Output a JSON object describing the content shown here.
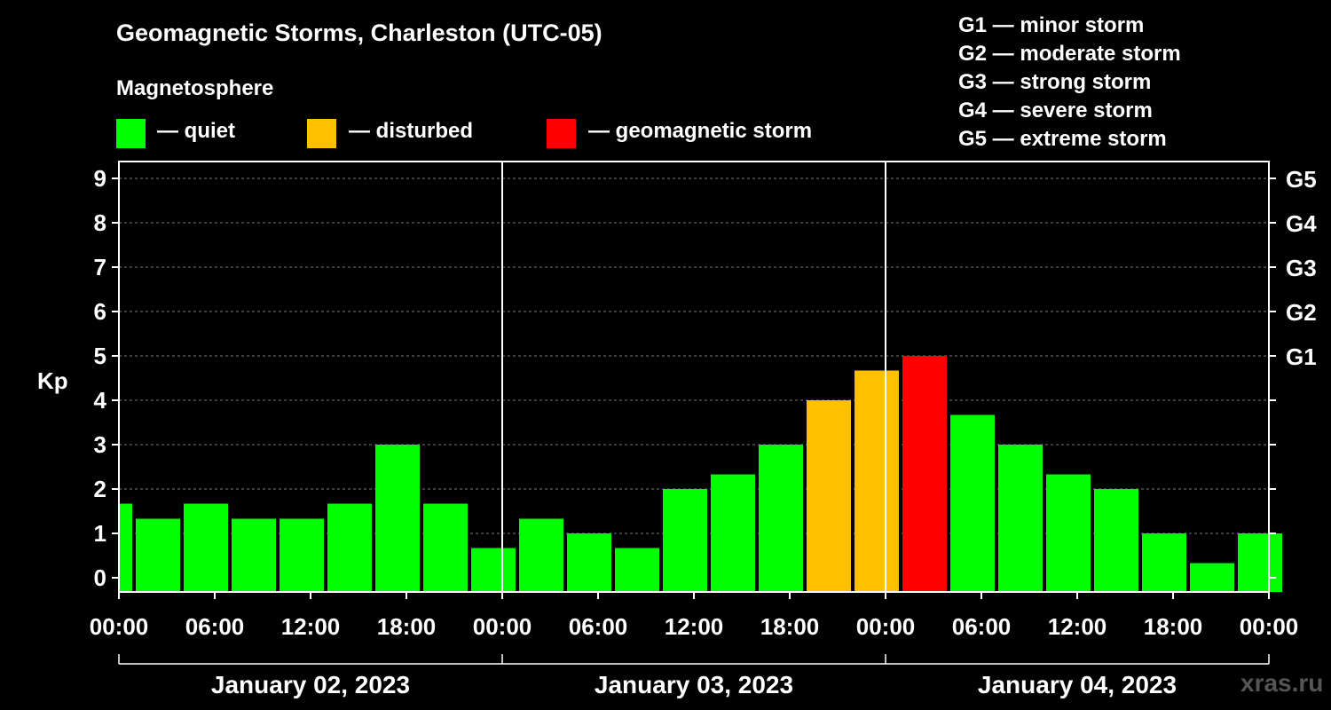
{
  "chart_data": {
    "type": "bar",
    "title": "Geomagnetic Storms, Charleston (UTC-05)",
    "subtitle": "Magnetosphere",
    "ylabel": "Kp",
    "ylim": [
      0,
      9
    ],
    "y_ticks": [
      "0",
      "1",
      "2",
      "3",
      "4",
      "5",
      "6",
      "7",
      "8",
      "9"
    ],
    "g_levels": [
      {
        "kp": 5,
        "label": "G1"
      },
      {
        "kp": 6,
        "label": "G2"
      },
      {
        "kp": 7,
        "label": "G3"
      },
      {
        "kp": 8,
        "label": "G4"
      },
      {
        "kp": 9,
        "label": "G5"
      }
    ],
    "x_ticks": [
      "00:00",
      "06:00",
      "12:00",
      "18:00",
      "00:00",
      "06:00",
      "12:00",
      "18:00",
      "00:00",
      "06:00",
      "12:00",
      "18:00",
      "00:00"
    ],
    "days": [
      "January 02, 2023",
      "January 03, 2023",
      "January 04, 2023"
    ],
    "first_bar_hours": 1,
    "bar_hours": 3,
    "total_hours": 72,
    "values": [
      1.67,
      1.33,
      1.67,
      1.33,
      1.33,
      1.67,
      3.0,
      1.67,
      0.67,
      1.33,
      1.0,
      0.67,
      2.0,
      2.33,
      3.0,
      4.0,
      4.67,
      5.0,
      3.67,
      3.0,
      2.33,
      2.0,
      1.0,
      0.33,
      1.0
    ],
    "status": [
      "quiet",
      "quiet",
      "quiet",
      "quiet",
      "quiet",
      "quiet",
      "quiet",
      "quiet",
      "quiet",
      "quiet",
      "quiet",
      "quiet",
      "quiet",
      "quiet",
      "quiet",
      "disturbed",
      "disturbed",
      "geomagnetic storm",
      "quiet",
      "quiet",
      "quiet",
      "quiet",
      "quiet",
      "quiet",
      "quiet"
    ]
  },
  "legend": {
    "items": [
      {
        "label": "— quiet",
        "color": "#00ff00"
      },
      {
        "label": "— disturbed",
        "color": "#ffc000"
      },
      {
        "label": "— geomagnetic storm",
        "color": "#ff0000"
      }
    ]
  },
  "storm_scale": [
    "G1 — minor storm",
    "G2 — moderate storm",
    "G3 — strong storm",
    "G4 — severe storm",
    "G5 — extreme storm"
  ],
  "watermark": "xras.ru"
}
